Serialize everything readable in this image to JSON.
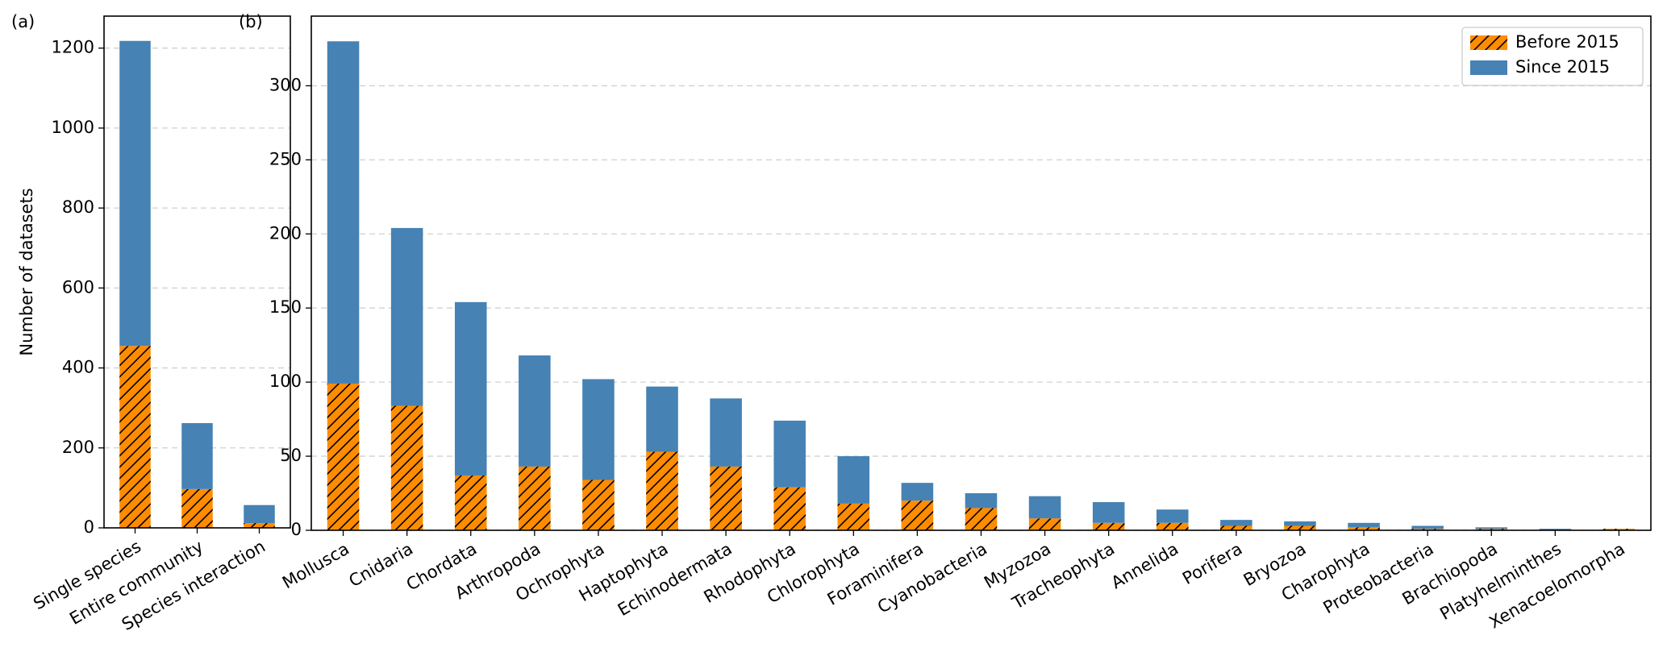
{
  "chart_data": [
    {
      "type": "bar",
      "stacked": true,
      "title": "(a)",
      "ylabel": "Number of datasets",
      "categories": [
        "Single species",
        "Entire community",
        "Species interaction"
      ],
      "series": [
        {
          "color": "#ff8c00",
          "hatch": true,
          "values": [
            455,
            97,
            12
          ]
        },
        {
          "color": "#4682b4",
          "hatch": false,
          "values": [
            763,
            165,
            45
          ]
        }
      ],
      "ylim": [
        0,
        1280
      ],
      "yticks": [
        0,
        200,
        400,
        600,
        800,
        1000,
        1200
      ],
      "grid": true
    },
    {
      "type": "bar",
      "stacked": true,
      "title": "(b)",
      "legend": "upper right",
      "categories": [
        "Mollusca",
        "Cnidaria",
        "Chordata",
        "Arthropoda",
        "Ochrophyta",
        "Haptophyta",
        "Echinodermata",
        "Rhodophyta",
        "Chlorophyta",
        "Foraminifera",
        "Cyanobacteria",
        "Myzozoa",
        "Tracheophyta",
        "Annelida",
        "Porifera",
        "Bryozoa",
        "Charophyta",
        "Proteobacteria",
        "Brachiopoda",
        "Platyhelminthes",
        "Xenacoelomorpha"
      ],
      "series": [
        {
          "name": "Before 2015",
          "color": "#ff8c00",
          "hatch": true,
          "values": [
            99,
            84,
            37,
            43,
            34,
            53,
            43,
            29,
            18,
            20,
            15,
            8,
            5,
            5,
            3,
            3,
            2,
            1,
            1,
            0,
            1
          ]
        },
        {
          "name": "Since 2015",
          "color": "#4682b4",
          "hatch": false,
          "values": [
            231,
            120,
            117,
            75,
            68,
            44,
            46,
            45,
            32,
            12,
            10,
            15,
            14,
            9,
            4,
            3,
            3,
            2,
            1,
            1,
            0
          ]
        }
      ],
      "ylim": [
        0,
        347
      ],
      "yticks": [
        0,
        50,
        100,
        150,
        200,
        250,
        300
      ],
      "grid": true
    }
  ]
}
